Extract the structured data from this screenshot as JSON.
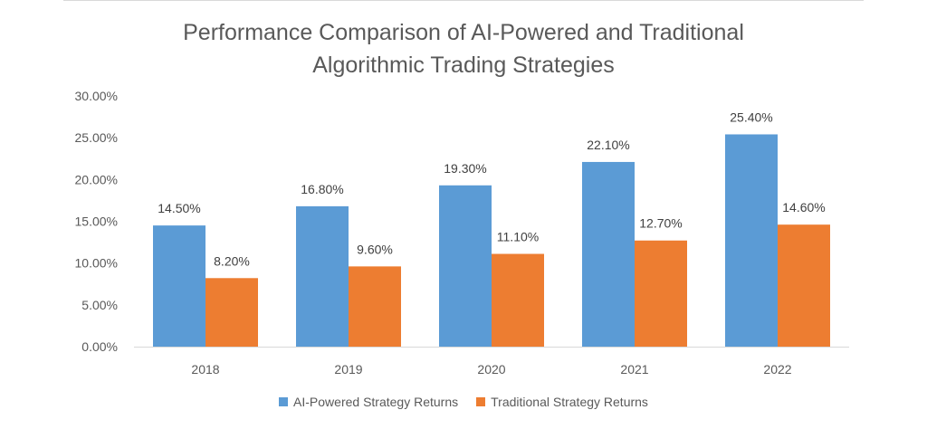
{
  "chart_data": {
    "type": "bar",
    "title_lines": [
      "Performance Comparison of AI-Powered and Traditional",
      "Algorithmic Trading Strategies"
    ],
    "categories": [
      "2018",
      "2019",
      "2020",
      "2021",
      "2022"
    ],
    "series": [
      {
        "name": "AI-Powered Strategy Returns",
        "color": "#5b9bd5",
        "values": [
          14.5,
          16.8,
          19.3,
          22.1,
          25.4
        ],
        "labels": [
          "14.50%",
          "16.80%",
          "19.30%",
          "22.10%",
          "25.40%"
        ]
      },
      {
        "name": "Traditional Strategy Returns",
        "color": "#ed7d31",
        "values": [
          8.2,
          9.6,
          11.1,
          12.7,
          14.6
        ],
        "labels": [
          "8.20%",
          "9.60%",
          "11.10%",
          "12.70%",
          "14.60%"
        ]
      }
    ],
    "y_ticks": [
      "0.00%",
      "5.00%",
      "10.00%",
      "15.00%",
      "20.00%",
      "25.00%",
      "30.00%"
    ],
    "ylim": [
      0,
      30
    ],
    "grid": false,
    "legend_position": "bottom"
  }
}
